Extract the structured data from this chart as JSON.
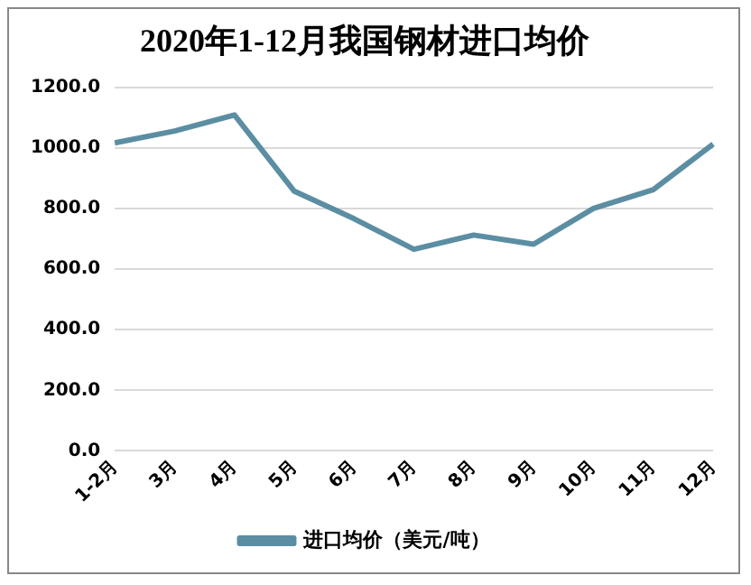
{
  "chart_data": {
    "type": "line",
    "title": "2020年1-12月我国钢材进口均价",
    "categories": [
      "1-2月",
      "3月",
      "4月",
      "5月",
      "6月",
      "7月",
      "8月",
      "9月",
      "10月",
      "11月",
      "12月"
    ],
    "series": [
      {
        "name": "进口均价（美元/吨）",
        "color": "#5b8ea3",
        "values": [
          1018,
          1057,
          1110,
          858,
          767,
          666,
          713,
          683,
          801,
          863,
          1014
        ]
      }
    ],
    "ylim": [
      0,
      1200
    ],
    "yticks": [
      {
        "value": 0,
        "label": "0.0"
      },
      {
        "value": 200,
        "label": "200.0"
      },
      {
        "value": 400,
        "label": "400.0"
      },
      {
        "value": 600,
        "label": "600.0"
      },
      {
        "value": 800,
        "label": "800.0"
      },
      {
        "value": 1000,
        "label": "1000.0"
      },
      {
        "value": 1200,
        "label": "1200.0"
      }
    ],
    "grid": "y",
    "legend": "bottom",
    "marker": "none",
    "line_style": "solid"
  }
}
